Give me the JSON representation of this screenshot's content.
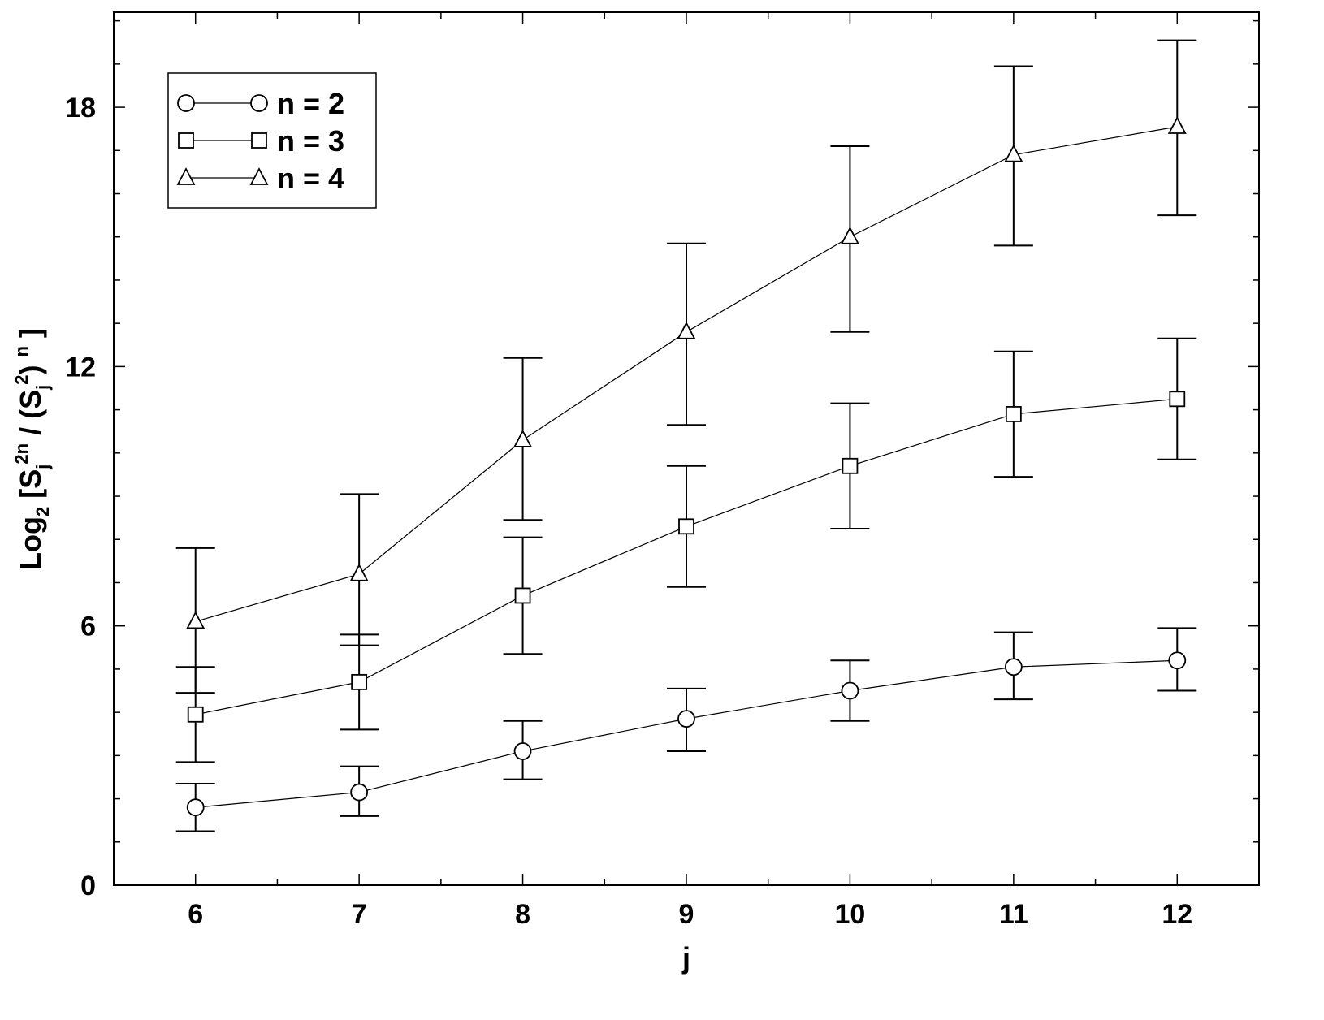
{
  "chart_data": {
    "type": "line",
    "xlabel": "j",
    "ylabel_parts": {
      "log": "Log",
      "base": "2",
      "open": "[S",
      "sub1": "j",
      "sup1": "2n",
      "mid": "/ (S",
      "sub2": "j",
      "sup2": "2",
      "close_paren": ")",
      "sup3": "n",
      "close": "]"
    },
    "x": [
      6,
      7,
      8,
      9,
      10,
      11,
      12
    ],
    "xlim": [
      5.5,
      12.5
    ],
    "ylim": [
      0,
      20.2
    ],
    "xticks": [
      "6",
      "7",
      "8",
      "9",
      "10",
      "11",
      "12"
    ],
    "yticks": [
      "0",
      "6",
      "12",
      "18"
    ],
    "grid": false,
    "legend": "top-left",
    "series": [
      {
        "name": "n = 2",
        "marker": "circle",
        "values": [
          1.8,
          2.15,
          3.1,
          3.85,
          4.5,
          5.05,
          5.2
        ],
        "err_low": [
          1.25,
          1.6,
          2.45,
          3.1,
          3.8,
          4.3,
          4.5
        ],
        "err_high": [
          2.35,
          2.75,
          3.8,
          4.55,
          5.2,
          5.85,
          5.95
        ]
      },
      {
        "name": "n = 3",
        "marker": "square",
        "values": [
          3.95,
          4.7,
          6.7,
          8.3,
          9.7,
          10.9,
          11.25
        ],
        "err_low": [
          2.85,
          3.6,
          5.35,
          6.9,
          8.25,
          9.45,
          9.85
        ],
        "err_high": [
          5.05,
          5.8,
          8.05,
          9.7,
          11.15,
          12.35,
          12.65
        ]
      },
      {
        "name": "n = 4",
        "marker": "triangle",
        "values": [
          6.1,
          7.2,
          10.3,
          12.8,
          15.0,
          16.9,
          17.55
        ],
        "err_low": [
          4.45,
          5.55,
          8.45,
          10.65,
          12.8,
          14.8,
          15.5
        ],
        "err_high": [
          7.8,
          9.05,
          12.2,
          14.85,
          17.1,
          18.95,
          19.55
        ]
      }
    ]
  }
}
